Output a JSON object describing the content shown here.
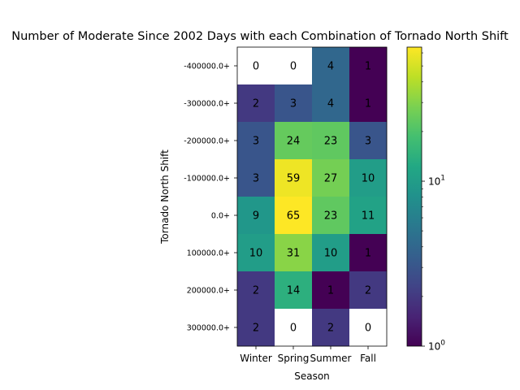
{
  "chart_data": {
    "type": "heatmap",
    "title": "Number of Moderate Since 2002 Days with each Combination of Tornado North Shift",
    "xlabel": "Season",
    "ylabel": "Tornado North Shift",
    "x_categories": [
      "Winter",
      "Spring",
      "Summer",
      "Fall"
    ],
    "y_categories": [
      "-400000.0+",
      "-300000.0+",
      "-200000.0+",
      "-100000.0+",
      "0.0+",
      "100000.0+",
      "200000.0+",
      "300000.0+"
    ],
    "values": [
      [
        0,
        0,
        4,
        1
      ],
      [
        2,
        3,
        4,
        1
      ],
      [
        3,
        24,
        23,
        3
      ],
      [
        3,
        59,
        27,
        10
      ],
      [
        9,
        65,
        23,
        11
      ],
      [
        10,
        31,
        10,
        1
      ],
      [
        2,
        14,
        1,
        2
      ],
      [
        2,
        0,
        2,
        0
      ]
    ],
    "zero_color": "#ffffff",
    "colormap": "viridis",
    "color_scale": "log",
    "color_range": [
      1,
      65
    ],
    "colorbar_ticks": [
      {
        "value": 1,
        "label": "10",
        "exp": "0"
      },
      {
        "value": 10,
        "label": "10",
        "exp": "1"
      }
    ]
  }
}
